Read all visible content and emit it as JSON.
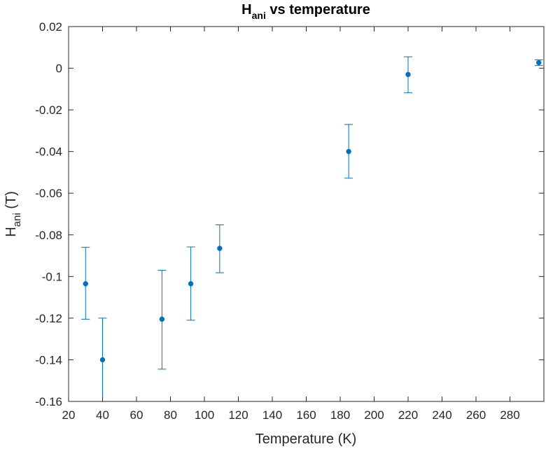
{
  "chart_data": {
    "type": "scatter",
    "title": {
      "main": "H",
      "sub": "ani",
      "rest": " vs temperature"
    },
    "xlabel": "Temperature (K)",
    "ylabel": {
      "main": "H",
      "sub": "ani",
      "rest": " (T)"
    },
    "xlim": [
      20,
      300
    ],
    "ylim": [
      -0.16,
      0.02
    ],
    "xticks": [
      20,
      40,
      60,
      80,
      100,
      120,
      140,
      160,
      180,
      200,
      220,
      240,
      260,
      280
    ],
    "xtick_labels": [
      "20",
      "40",
      "60",
      "80",
      "100",
      "120",
      "140",
      "160",
      "180",
      "200",
      "220",
      "240",
      "260",
      "280"
    ],
    "yticks": [
      -0.16,
      -0.14,
      -0.12,
      -0.1,
      -0.08,
      -0.06,
      -0.04,
      -0.02,
      0,
      0.02
    ],
    "ytick_labels": [
      "-0.16",
      "-0.14",
      "-0.12",
      "-0.1",
      "-0.08",
      "-0.06",
      "-0.04",
      "-0.02",
      "0",
      "0.02"
    ],
    "grid": false,
    "color": "#0072bd",
    "series": [
      {
        "points": [
          {
            "x": 30,
            "y": -0.1035,
            "lower": -0.1205,
            "upper": -0.086
          },
          {
            "x": 40,
            "y": -0.14,
            "lower": -0.16,
            "upper": -0.12
          },
          {
            "x": 75,
            "y": -0.1205,
            "lower": -0.1445,
            "upper": -0.097
          },
          {
            "x": 92,
            "y": -0.1035,
            "lower": -0.121,
            "upper": -0.0858
          },
          {
            "x": 109,
            "y": -0.0865,
            "lower": -0.0982,
            "upper": -0.0752
          },
          {
            "x": 185,
            "y": -0.04,
            "lower": -0.0528,
            "upper": -0.027
          },
          {
            "x": 220,
            "y": -0.003,
            "lower": -0.0118,
            "upper": 0.0055
          },
          {
            "x": 297,
            "y": 0.0027,
            "lower": 0.0013,
            "upper": 0.004
          }
        ]
      }
    ]
  }
}
